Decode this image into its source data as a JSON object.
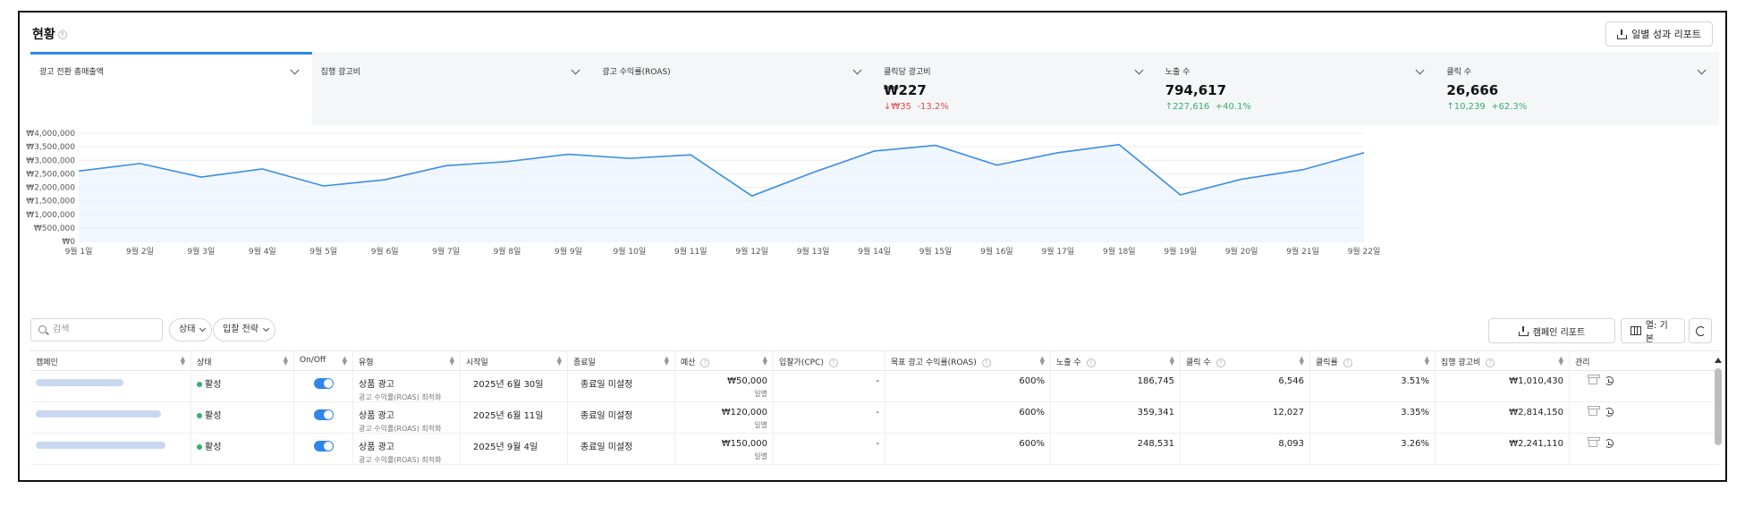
{
  "header": {
    "title": "현황",
    "report_button": "일별 성과 리포트"
  },
  "metrics": [
    {
      "label": "광고 전환 총매출액",
      "value": "",
      "delta_abs": "",
      "delta_pct": "",
      "direction": "",
      "active": true
    },
    {
      "label": "집행 광고비",
      "value": "",
      "delta_abs": "",
      "delta_pct": "",
      "direction": "",
      "active": false
    },
    {
      "label": "광고 수익률(ROAS)",
      "value": "",
      "delta_abs": "",
      "delta_pct": "",
      "direction": "",
      "active": false
    },
    {
      "label": "클릭당 광고비",
      "value": "₩227",
      "delta_abs": "↓₩35",
      "delta_pct": "-13.2%",
      "direction": "down",
      "active": false
    },
    {
      "label": "노출 수",
      "value": "794,617",
      "delta_abs": "↑227,616",
      "delta_pct": "+40.1%",
      "direction": "up",
      "active": false
    },
    {
      "label": "클릭 수",
      "value": "26,666",
      "delta_abs": "↑10,239",
      "delta_pct": "+62.3%",
      "direction": "up",
      "active": false
    }
  ],
  "colors": {
    "accent": "#2f86e8",
    "up": "#2fb36b",
    "down": "#e5484d",
    "line": "#3b8de8"
  },
  "chart_data": {
    "type": "line",
    "x": [
      "9월 1일",
      "9월 2일",
      "9월 3일",
      "9월 4일",
      "9월 5일",
      "9월 6일",
      "9월 7일",
      "9월 8일",
      "9월 9일",
      "9월 10일",
      "9월 11일",
      "9월 12일",
      "9월 13일",
      "9월 14일",
      "9월 15일",
      "9월 16일",
      "9월 17일",
      "9월 18일",
      "9월 19일",
      "9월 20일",
      "9월 21일",
      "9월 22일"
    ],
    "series": [
      {
        "values": [
          2600000,
          2880000,
          2380000,
          2680000,
          2050000,
          2280000,
          2800000,
          2950000,
          3220000,
          3070000,
          3200000,
          1680000,
          2550000,
          3340000,
          3550000,
          2820000,
          3280000,
          3580000,
          1720000,
          2300000,
          2650000,
          3280000
        ]
      }
    ],
    "yticks": [
      "₩0",
      "₩500,000",
      "₩1,000,000",
      "₩1,500,000",
      "₩2,000,000",
      "₩2,500,000",
      "₩3,000,000",
      "₩3,500,000",
      "₩4,000,000"
    ],
    "ylim": [
      0,
      4000000
    ],
    "area_fill": true,
    "grid": true
  },
  "toolbar": {
    "search_placeholder": "검색",
    "status_filter": "상태",
    "bid_filter": "입찰 전략",
    "campaign_report": "캠페인 리포트",
    "columns_label": "열: 기본"
  },
  "table": {
    "headers": [
      "캠페인",
      "상태",
      "On/Off",
      "유형",
      "시작일",
      "종료일",
      "예산",
      "입찰가(CPC)",
      "목표 광고 수익률(ROAS)",
      "노출 수",
      "클릭 수",
      "클릭률",
      "집행 광고비",
      "관리"
    ],
    "rows": [
      {
        "status": "활성",
        "type": "상품 광고",
        "type_sub": "광고 수익률(ROAS) 최적화",
        "start": "2025년 6월 30일",
        "end": "종료일 미설정",
        "budget": "₩50,000",
        "budget_sub": "일별",
        "cpc": "-",
        "roas": "600%",
        "impressions": "186,745",
        "clicks": "6,546",
        "ctr": "3.51%",
        "spend": "₩1,010,430"
      },
      {
        "status": "활성",
        "type": "상품 광고",
        "type_sub": "광고 수익률(ROAS) 최적화",
        "start": "2025년 6월 11일",
        "end": "종료일 미설정",
        "budget": "₩120,000",
        "budget_sub": "일별",
        "cpc": "-",
        "roas": "600%",
        "impressions": "359,341",
        "clicks": "12,027",
        "ctr": "3.35%",
        "spend": "₩2,814,150"
      },
      {
        "status": "활성",
        "type": "상품 광고",
        "type_sub": "광고 수익률(ROAS) 최적화",
        "start": "2025년 9월 4일",
        "end": "종료일 미설정",
        "budget": "₩150,000",
        "budget_sub": "일별",
        "cpc": "-",
        "roas": "600%",
        "impressions": "248,531",
        "clicks": "8,093",
        "ctr": "3.26%",
        "spend": "₩2,241,110"
      }
    ]
  }
}
